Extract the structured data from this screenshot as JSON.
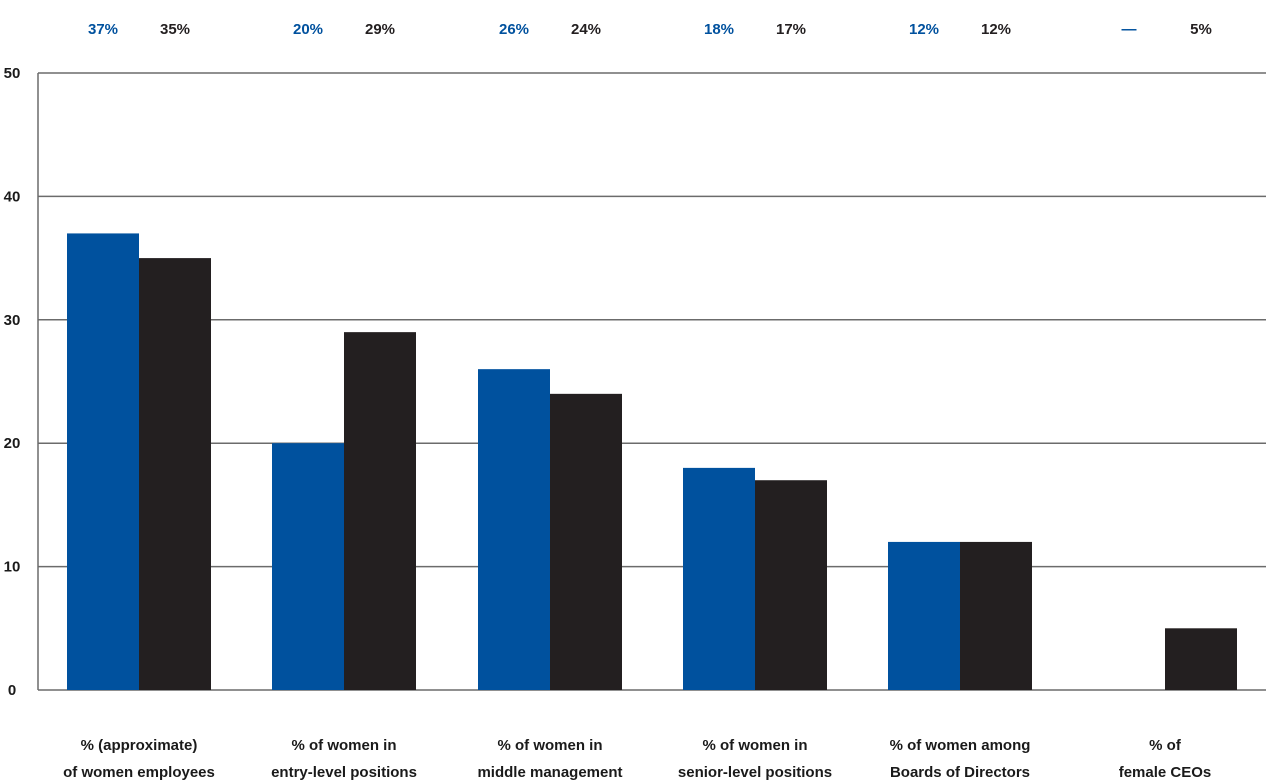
{
  "chart_data": {
    "type": "bar",
    "categories": [
      [
        "% (approximate)",
        "of women employees"
      ],
      [
        "% of women in",
        "entry-level positions"
      ],
      [
        "% of women in",
        "middle management"
      ],
      [
        "% of women in",
        "senior-level positions"
      ],
      [
        "% of women among",
        "Boards of Directors"
      ],
      [
        "% of",
        "female CEOs"
      ]
    ],
    "series": [
      {
        "color": "#00519e",
        "values": [
          37,
          20,
          26,
          18,
          12,
          null
        ],
        "top_labels": [
          "37%",
          "20%",
          "26%",
          "18%",
          "12%",
          "—"
        ]
      },
      {
        "color": "#231f20",
        "values": [
          35,
          29,
          24,
          17,
          12,
          5
        ],
        "top_labels": [
          "35%",
          "29%",
          "24%",
          "17%",
          "12%",
          "5%"
        ]
      }
    ],
    "ylim": [
      0,
      50
    ],
    "yticks": [
      "0",
      "10",
      "20",
      "30",
      "40",
      "50"
    ],
    "grid": true,
    "title": "",
    "xlabel": "",
    "ylabel": ""
  }
}
